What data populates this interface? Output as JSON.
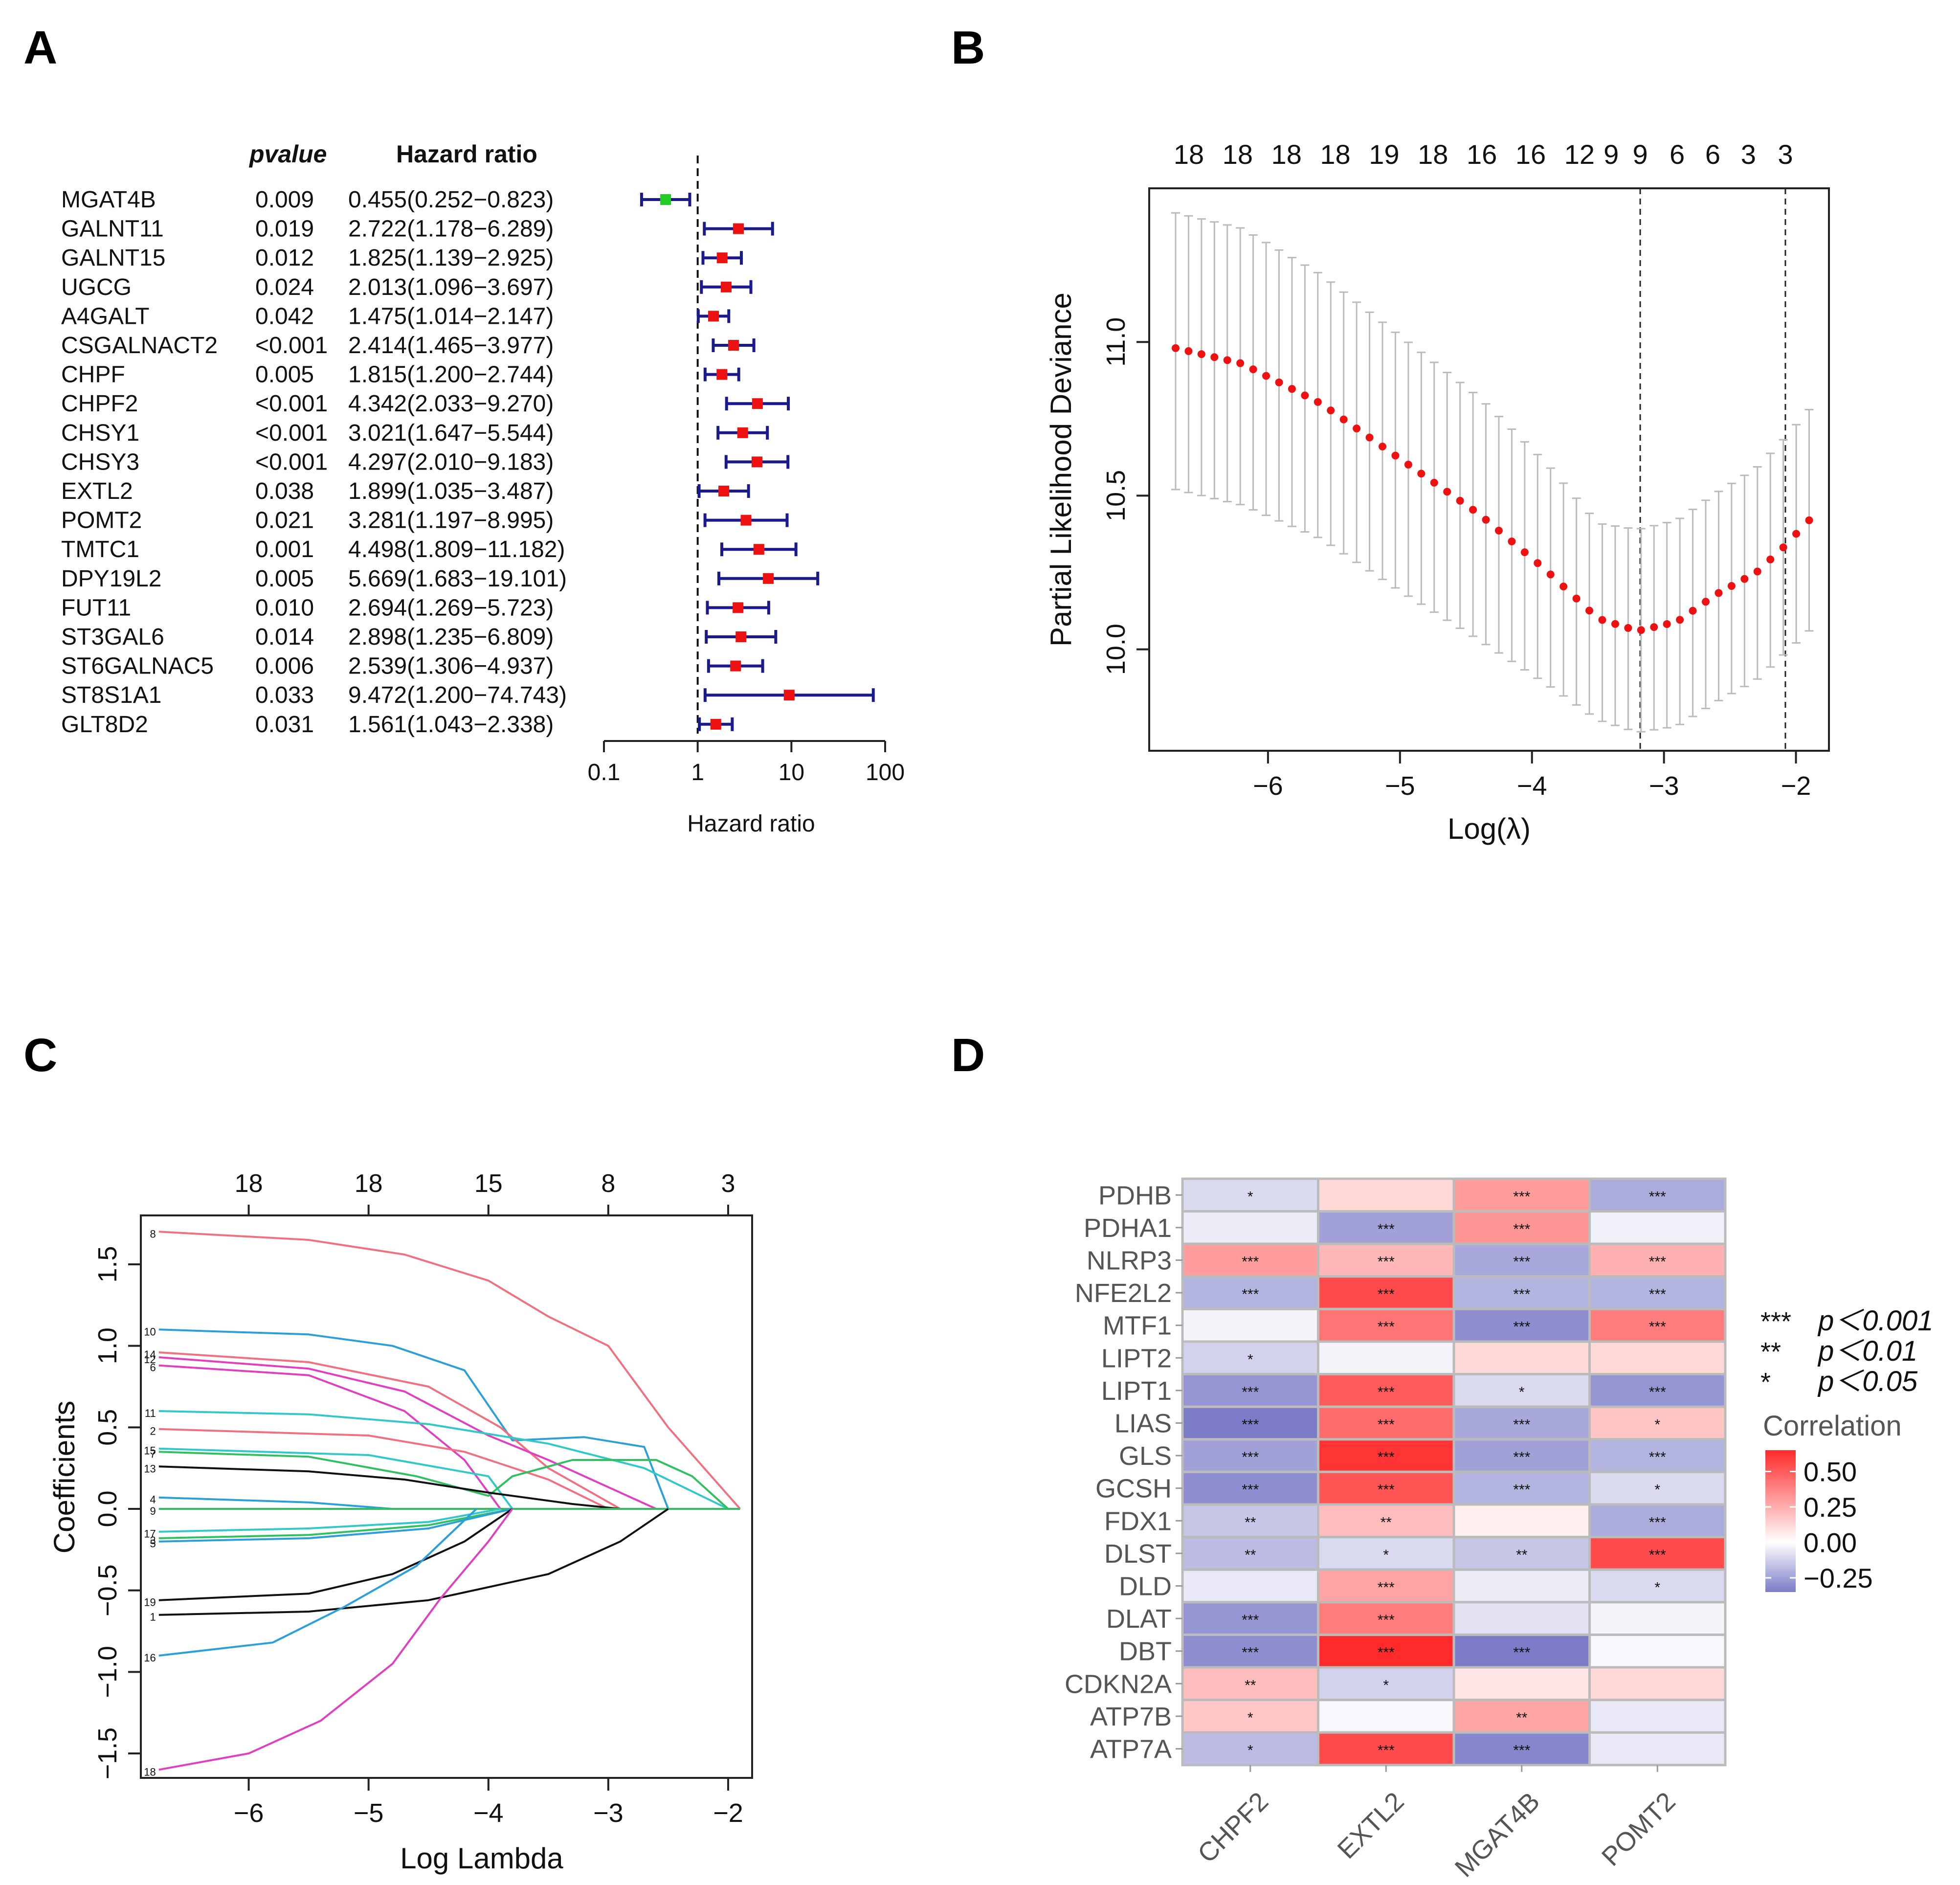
{
  "panels": {
    "a": {
      "label": "A"
    },
    "b": {
      "label": "B"
    },
    "c": {
      "label": "C"
    },
    "d": {
      "label": "D"
    }
  },
  "chart_data": [
    {
      "id": "A",
      "type": "forest",
      "title": "",
      "columns": {
        "pvalue": "pvalue",
        "hr": "Hazard ratio"
      },
      "xlabel": "Hazard ratio",
      "xscale": "log",
      "xlim": [
        0.1,
        100
      ],
      "xticks": [
        "0.1",
        "1",
        "10",
        "100"
      ],
      "xtick_values": [
        0.1,
        1,
        10,
        100
      ],
      "reference_line": 1,
      "colors": {
        "protective": "#22cc22",
        "risk": "#ee1111",
        "ci": "#1a1a8c"
      },
      "rows": [
        {
          "gene": "MGAT4B",
          "pvalue": "0.009",
          "hr_text": "0.455(0.252−0.823)",
          "hr": 0.455,
          "lo": 0.252,
          "hi": 0.823
        },
        {
          "gene": "GALNT11",
          "pvalue": "0.019",
          "hr_text": "2.722(1.178−6.289)",
          "hr": 2.722,
          "lo": 1.178,
          "hi": 6.289
        },
        {
          "gene": "GALNT15",
          "pvalue": "0.012",
          "hr_text": "1.825(1.139−2.925)",
          "hr": 1.825,
          "lo": 1.139,
          "hi": 2.925
        },
        {
          "gene": "UGCG",
          "pvalue": "0.024",
          "hr_text": "2.013(1.096−3.697)",
          "hr": 2.013,
          "lo": 1.096,
          "hi": 3.697
        },
        {
          "gene": "A4GALT",
          "pvalue": "0.042",
          "hr_text": "1.475(1.014−2.147)",
          "hr": 1.475,
          "lo": 1.014,
          "hi": 2.147
        },
        {
          "gene": "CSGALNACT2",
          "pvalue": "<0.001",
          "hr_text": "2.414(1.465−3.977)",
          "hr": 2.414,
          "lo": 1.465,
          "hi": 3.977
        },
        {
          "gene": "CHPF",
          "pvalue": "0.005",
          "hr_text": "1.815(1.200−2.744)",
          "hr": 1.815,
          "lo": 1.2,
          "hi": 2.744
        },
        {
          "gene": "CHPF2",
          "pvalue": "<0.001",
          "hr_text": "4.342(2.033−9.270)",
          "hr": 4.342,
          "lo": 2.033,
          "hi": 9.27
        },
        {
          "gene": "CHSY1",
          "pvalue": "<0.001",
          "hr_text": "3.021(1.647−5.544)",
          "hr": 3.021,
          "lo": 1.647,
          "hi": 5.544
        },
        {
          "gene": "CHSY3",
          "pvalue": "<0.001",
          "hr_text": "4.297(2.010−9.183)",
          "hr": 4.297,
          "lo": 2.01,
          "hi": 9.183
        },
        {
          "gene": "EXTL2",
          "pvalue": "0.038",
          "hr_text": "1.899(1.035−3.487)",
          "hr": 1.899,
          "lo": 1.035,
          "hi": 3.487
        },
        {
          "gene": "POMT2",
          "pvalue": "0.021",
          "hr_text": "3.281(1.197−8.995)",
          "hr": 3.281,
          "lo": 1.197,
          "hi": 8.995
        },
        {
          "gene": "TMTC1",
          "pvalue": "0.001",
          "hr_text": "4.498(1.809−11.182)",
          "hr": 4.498,
          "lo": 1.809,
          "hi": 11.182
        },
        {
          "gene": "DPY19L2",
          "pvalue": "0.005",
          "hr_text": "5.669(1.683−19.101)",
          "hr": 5.669,
          "lo": 1.683,
          "hi": 19.101
        },
        {
          "gene": "FUT11",
          "pvalue": "0.010",
          "hr_text": "2.694(1.269−5.723)",
          "hr": 2.694,
          "lo": 1.269,
          "hi": 5.723
        },
        {
          "gene": "ST3GAL6",
          "pvalue": "0.014",
          "hr_text": "2.898(1.235−6.809)",
          "hr": 2.898,
          "lo": 1.235,
          "hi": 6.809
        },
        {
          "gene": "ST6GALNAC5",
          "pvalue": "0.006",
          "hr_text": "2.539(1.306−4.937)",
          "hr": 2.539,
          "lo": 1.306,
          "hi": 4.937
        },
        {
          "gene": "ST8S1A1",
          "pvalue": "0.033",
          "hr_text": "9.472(1.200−74.743)",
          "hr": 9.472,
          "lo": 1.2,
          "hi": 74.743
        },
        {
          "gene": "GLT8D2",
          "pvalue": "0.031",
          "hr_text": "1.561(1.043−2.338)",
          "hr": 1.561,
          "lo": 1.043,
          "hi": 2.338
        }
      ]
    },
    {
      "id": "B",
      "type": "scatter",
      "title": "",
      "xlabel": "Log(λ)",
      "ylabel": "Partial Likelihood Deviance",
      "xlim": [
        -6.9,
        -1.75
      ],
      "ylim": [
        9.67,
        11.5
      ],
      "xticks": [
        "−6",
        "−5",
        "−4",
        "−3",
        "−2"
      ],
      "xtick_values": [
        -6,
        -5,
        -4,
        -3,
        -2
      ],
      "yticks": [
        "10.0",
        "10.5",
        "11.0"
      ],
      "ytick_values": [
        10.0,
        10.5,
        11.0
      ],
      "top_axis_labels": [
        "18",
        "18",
        "18",
        "18",
        "19",
        "18",
        "16",
        "16",
        "12",
        "9",
        "9",
        "6",
        "6",
        "3",
        "3"
      ],
      "top_axis_values": [
        -6.6,
        -6.23,
        -5.86,
        -5.49,
        -5.12,
        -4.75,
        -4.38,
        -4.01,
        -3.64,
        -3.4,
        -3.18,
        -2.9,
        -2.63,
        -2.36,
        -2.08
      ],
      "vlines": [
        -3.18,
        -2.08
      ],
      "point_color": "#ee1111",
      "errorbar_color": "#bbbbbb",
      "series": [
        {
          "name": "deviance",
          "x_start": -6.7,
          "x_end": -1.9,
          "n": 50,
          "keypoints_x": [
            -6.7,
            -6.2,
            -5.6,
            -5.0,
            -4.4,
            -3.9,
            -3.5,
            -3.2,
            -2.9,
            -2.6,
            -2.3,
            -2.1,
            -1.9
          ],
          "keypoints_y": [
            10.98,
            10.93,
            10.8,
            10.62,
            10.44,
            10.26,
            10.1,
            10.06,
            10.09,
            10.18,
            10.25,
            10.33,
            10.42
          ],
          "se_upper_offset": [
            0.44,
            0.44,
            0.42,
            0.4,
            0.38,
            0.35,
            0.31,
            0.33,
            0.33,
            0.33,
            0.34,
            0.35,
            0.36
          ],
          "se_lower_offset": [
            0.46,
            0.46,
            0.44,
            0.43,
            0.41,
            0.37,
            0.33,
            0.33,
            0.34,
            0.35,
            0.35,
            0.35,
            0.36
          ]
        }
      ]
    },
    {
      "id": "C",
      "type": "line",
      "title": "",
      "xlabel": "Log Lambda",
      "ylabel": "Coefficients",
      "xlim": [
        -6.9,
        -1.8
      ],
      "ylim": [
        -1.65,
        1.8
      ],
      "xticks": [
        "−6",
        "−5",
        "−4",
        "−3",
        "−2"
      ],
      "xtick_values": [
        -6,
        -5,
        -4,
        -3,
        -2
      ],
      "yticks": [
        "−1.5",
        "−1.0",
        "−0.5",
        "0.0",
        "0.5",
        "1.0",
        "1.5"
      ],
      "ytick_values": [
        -1.5,
        -1.0,
        -0.5,
        0.0,
        0.5,
        1.0,
        1.5
      ],
      "top_axis_labels": [
        "18",
        "18",
        "15",
        "8",
        "3"
      ],
      "top_axis_values": [
        -6,
        -5,
        -4,
        -3,
        -2
      ],
      "series": [
        {
          "name": "8",
          "color": "#f07080",
          "x": [
            -6.75,
            -5.5,
            -4.7,
            -4.0,
            -3.5,
            -3.0,
            -2.5,
            -1.9
          ],
          "y": [
            1.7,
            1.65,
            1.56,
            1.4,
            1.18,
            1.0,
            0.5,
            0.0
          ]
        },
        {
          "name": "10",
          "color": "#2a9fd8",
          "x": [
            -6.75,
            -5.5,
            -4.8,
            -4.2,
            -3.8,
            -3.2,
            -2.7,
            -2.5
          ],
          "y": [
            1.1,
            1.07,
            1.0,
            0.85,
            0.42,
            0.44,
            0.38,
            0.0
          ]
        },
        {
          "name": "14",
          "color": "#f07080",
          "x": [
            -6.75,
            -5.5,
            -4.5,
            -3.9,
            -3.5,
            -2.9
          ],
          "y": [
            0.96,
            0.9,
            0.75,
            0.5,
            0.25,
            0.0
          ]
        },
        {
          "name": "12",
          "color": "#e040c0",
          "x": [
            -6.75,
            -5.5,
            -4.7,
            -4.0,
            -3.5,
            -2.6
          ],
          "y": [
            0.93,
            0.86,
            0.72,
            0.45,
            0.3,
            0.0
          ]
        },
        {
          "name": "6",
          "color": "#e040c0",
          "x": [
            -6.75,
            -5.5,
            -4.7,
            -4.2,
            -3.9
          ],
          "y": [
            0.88,
            0.82,
            0.6,
            0.3,
            0.0
          ]
        },
        {
          "name": "11",
          "color": "#30c8c8",
          "x": [
            -6.75,
            -5.5,
            -4.5,
            -3.5,
            -2.7,
            -2.0
          ],
          "y": [
            0.6,
            0.58,
            0.52,
            0.4,
            0.25,
            0.0
          ]
        },
        {
          "name": "2",
          "color": "#f07080",
          "x": [
            -6.75,
            -5.0,
            -4.2,
            -3.5,
            -3.0
          ],
          "y": [
            0.49,
            0.45,
            0.35,
            0.18,
            0.0
          ]
        },
        {
          "name": "15",
          "color": "#30c8c8",
          "x": [
            -6.75,
            -5.0,
            -4.0,
            -3.8
          ],
          "y": [
            0.37,
            0.33,
            0.2,
            0.0
          ]
        },
        {
          "name": "7",
          "color": "#30c060",
          "x": [
            -6.75,
            -5.5,
            -4.6,
            -4.0,
            -3.8,
            -3.3,
            -2.6,
            -2.3,
            -2.0
          ],
          "y": [
            0.35,
            0.32,
            0.2,
            0.08,
            0.2,
            0.3,
            0.3,
            0.2,
            0.0
          ]
        },
        {
          "name": "13",
          "color": "#111111",
          "x": [
            -6.75,
            -5.5,
            -4.7,
            -4.0,
            -3.3,
            -2.9
          ],
          "y": [
            0.26,
            0.23,
            0.18,
            0.1,
            0.03,
            0.0
          ]
        },
        {
          "name": "4",
          "color": "#2a9fd8",
          "x": [
            -6.75,
            -5.5,
            -4.8
          ],
          "y": [
            0.07,
            0.04,
            0.0
          ]
        },
        {
          "name": "9",
          "color": "#30c060",
          "x": [
            -6.75,
            -1.9
          ],
          "y": [
            0.0,
            0.0
          ]
        },
        {
          "name": "17",
          "color": "#30c8c8",
          "x": [
            -6.75,
            -5.5,
            -4.5,
            -3.9
          ],
          "y": [
            -0.14,
            -0.12,
            -0.08,
            0.0
          ]
        },
        {
          "name": "3",
          "color": "#30c060",
          "x": [
            -6.75,
            -5.5,
            -4.5,
            -3.8
          ],
          "y": [
            -0.18,
            -0.16,
            -0.1,
            0.0
          ]
        },
        {
          "name": "5",
          "color": "#2a9fd8",
          "x": [
            -6.75,
            -5.5,
            -4.5,
            -3.8
          ],
          "y": [
            -0.2,
            -0.18,
            -0.12,
            0.0
          ]
        },
        {
          "name": "19",
          "color": "#111111",
          "x": [
            -6.75,
            -5.5,
            -4.8,
            -4.2,
            -3.8
          ],
          "y": [
            -0.56,
            -0.52,
            -0.4,
            -0.2,
            0.0
          ]
        },
        {
          "name": "1",
          "color": "#111111",
          "x": [
            -6.75,
            -5.5,
            -4.5,
            -3.5,
            -2.9,
            -2.5
          ],
          "y": [
            -0.65,
            -0.63,
            -0.56,
            -0.4,
            -0.2,
            0.0
          ]
        },
        {
          "name": "16",
          "color": "#2a9fd8",
          "x": [
            -6.75,
            -5.8,
            -5.2,
            -4.6,
            -4.1
          ],
          "y": [
            -0.9,
            -0.82,
            -0.6,
            -0.35,
            0.0
          ]
        },
        {
          "name": "18",
          "color": "#e040c0",
          "x": [
            -6.75,
            -6.0,
            -5.4,
            -4.8,
            -4.4,
            -4.0,
            -3.8
          ],
          "y": [
            -1.6,
            -1.5,
            -1.3,
            -0.95,
            -0.55,
            -0.2,
            0.0
          ]
        }
      ]
    },
    {
      "id": "D",
      "type": "heatmap",
      "title": "",
      "rows": [
        "PDHB",
        "PDHA1",
        "NLRP3",
        "NFE2L2",
        "MTF1",
        "LIPT2",
        "LIPT1",
        "LIAS",
        "GLS",
        "GCSH",
        "FDX1",
        "DLST",
        "DLD",
        "DLAT",
        "DBT",
        "CDKN2A",
        "ATP7B",
        "ATP7A"
      ],
      "columns": [
        "CHPF2",
        "EXTL2",
        "MGAT4B",
        "POMT2"
      ],
      "values": [
        [
          -0.1,
          0.12,
          0.3,
          -0.22
        ],
        [
          -0.05,
          -0.25,
          0.32,
          -0.04
        ],
        [
          0.3,
          0.22,
          -0.23,
          0.24
        ],
        [
          -0.2,
          0.55,
          -0.2,
          -0.2
        ],
        [
          -0.03,
          0.42,
          -0.3,
          0.4
        ],
        [
          -0.12,
          -0.03,
          0.12,
          0.12
        ],
        [
          -0.28,
          0.5,
          -0.1,
          -0.28
        ],
        [
          -0.4,
          0.45,
          -0.23,
          0.18
        ],
        [
          -0.25,
          0.62,
          -0.25,
          -0.2
        ],
        [
          -0.3,
          0.52,
          -0.2,
          -0.1
        ],
        [
          -0.15,
          0.2,
          0.05,
          -0.22
        ],
        [
          -0.18,
          -0.1,
          -0.15,
          0.55
        ],
        [
          -0.06,
          0.28,
          -0.05,
          -0.1
        ],
        [
          -0.28,
          0.4,
          -0.08,
          -0.03
        ],
        [
          -0.3,
          0.7,
          -0.38,
          -0.02
        ],
        [
          0.2,
          -0.12,
          0.08,
          0.12
        ],
        [
          0.17,
          -0.02,
          0.27,
          -0.06
        ],
        [
          -0.18,
          0.55,
          -0.32,
          -0.06
        ]
      ],
      "stars": [
        [
          "*",
          "",
          "***",
          "***"
        ],
        [
          "",
          "***",
          "***",
          ""
        ],
        [
          "***",
          "***",
          "***",
          "***"
        ],
        [
          "***",
          "***",
          "***",
          "***"
        ],
        [
          "",
          "***",
          "***",
          "***"
        ],
        [
          "*",
          "",
          "",
          ""
        ],
        [
          "***",
          "***",
          "*",
          "***"
        ],
        [
          "***",
          "***",
          "***",
          "*"
        ],
        [
          "***",
          "***",
          "***",
          "***"
        ],
        [
          "***",
          "***",
          "***",
          "*"
        ],
        [
          "**",
          "**",
          "",
          "***"
        ],
        [
          "**",
          "*",
          "**",
          "***"
        ],
        [
          "",
          "***",
          "",
          "*"
        ],
        [
          "***",
          "***",
          "",
          ""
        ],
        [
          "***",
          "***",
          "***",
          ""
        ],
        [
          "**",
          "*",
          "",
          ""
        ],
        [
          "*",
          "",
          "**",
          ""
        ],
        [
          "*",
          "***",
          "***",
          ""
        ]
      ],
      "legend": {
        "title": "Correlation",
        "ticks": [
          "0.50",
          "0.25",
          "0.00",
          "−0.25"
        ],
        "tick_values": [
          0.5,
          0.25,
          0.0,
          -0.25
        ],
        "range": [
          -0.35,
          0.65
        ],
        "colors": {
          "low": "#7b7bc8",
          "mid": "#ffffff",
          "high": "#ff2a2a"
        }
      },
      "significance": [
        {
          "stars": "***",
          "text": "p＜0.001"
        },
        {
          "stars": "**",
          "text": "p＜0.01"
        },
        {
          "stars": "*",
          "text": "p＜0.05"
        }
      ]
    }
  ]
}
